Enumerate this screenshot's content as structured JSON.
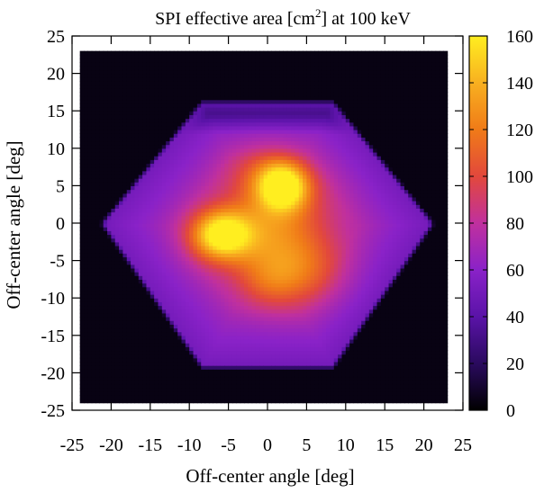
{
  "chart_data": {
    "type": "heatmap",
    "title_parts": [
      "SPI effective area [cm",
      "2",
      "] at 100 keV"
    ],
    "xlabel": "Off-center angle [deg]",
    "ylabel": "Off-center angle [deg]",
    "xlim": [
      -25,
      25
    ],
    "ylim": [
      -25,
      25
    ],
    "xticks": [
      -25,
      -20,
      -15,
      -10,
      -5,
      0,
      5,
      10,
      15,
      20,
      25
    ],
    "yticks": [
      -25,
      -20,
      -15,
      -10,
      -5,
      0,
      5,
      10,
      15,
      20,
      25
    ],
    "xtick_labels": [
      "-25",
      "-20",
      "-15",
      "-10",
      "-5",
      "0",
      "5",
      "10",
      "15",
      "20",
      "25"
    ],
    "ytick_labels": [
      "-25",
      "-20",
      "-15",
      "-10",
      "-5",
      "0",
      "5",
      "10",
      "15",
      "20",
      "25"
    ],
    "data_extent": {
      "x": [
        -24,
        23
      ],
      "y": [
        -24,
        23
      ]
    },
    "colorbar": {
      "range": [
        0,
        160
      ],
      "ticks": [
        0,
        20,
        40,
        60,
        80,
        100,
        120,
        140,
        160
      ],
      "tick_labels": [
        "0",
        "20",
        "40",
        "60",
        "80",
        "100",
        "120",
        "140",
        "160"
      ],
      "palette": [
        "#000000",
        "#2a0a5e",
        "#5a13a8",
        "#8a22c8",
        "#c0309e",
        "#e2483c",
        "#f07b18",
        "#f8b020",
        "#ffee20"
      ]
    },
    "field_model": {
      "hexagon_vertices": [
        [
          -8.5,
          16.5
        ],
        [
          8.5,
          16.5
        ],
        [
          21.5,
          0
        ],
        [
          8.5,
          -19.5
        ],
        [
          -8.5,
          -19.5
        ],
        [
          -21.5,
          0
        ]
      ],
      "background_value": 4,
      "edge_value": 50,
      "inner_value": 70,
      "blobs": [
        {
          "x": 2,
          "y": 5,
          "amplitude": 90,
          "sx": 2.2,
          "sy": 2.2
        },
        {
          "x": -6,
          "y": -1.5,
          "amplitude": 80,
          "sx": 2.6,
          "sy": 2.2
        },
        {
          "x": 1.5,
          "y": 2,
          "amplitude": 35,
          "sx": 5,
          "sy": 4.5
        },
        {
          "x": -3,
          "y": -2,
          "amplitude": 30,
          "sx": 4.5,
          "sy": 3.5
        },
        {
          "x": 4,
          "y": -6,
          "amplitude": 40,
          "sx": 4,
          "sy": 3.5
        },
        {
          "x": 0,
          "y": -8,
          "amplitude": 22,
          "sx": 3,
          "sy": 2.5
        },
        {
          "x": -1,
          "y": 7,
          "amplitude": 18,
          "sx": 3,
          "sy": 2.5
        }
      ]
    }
  }
}
